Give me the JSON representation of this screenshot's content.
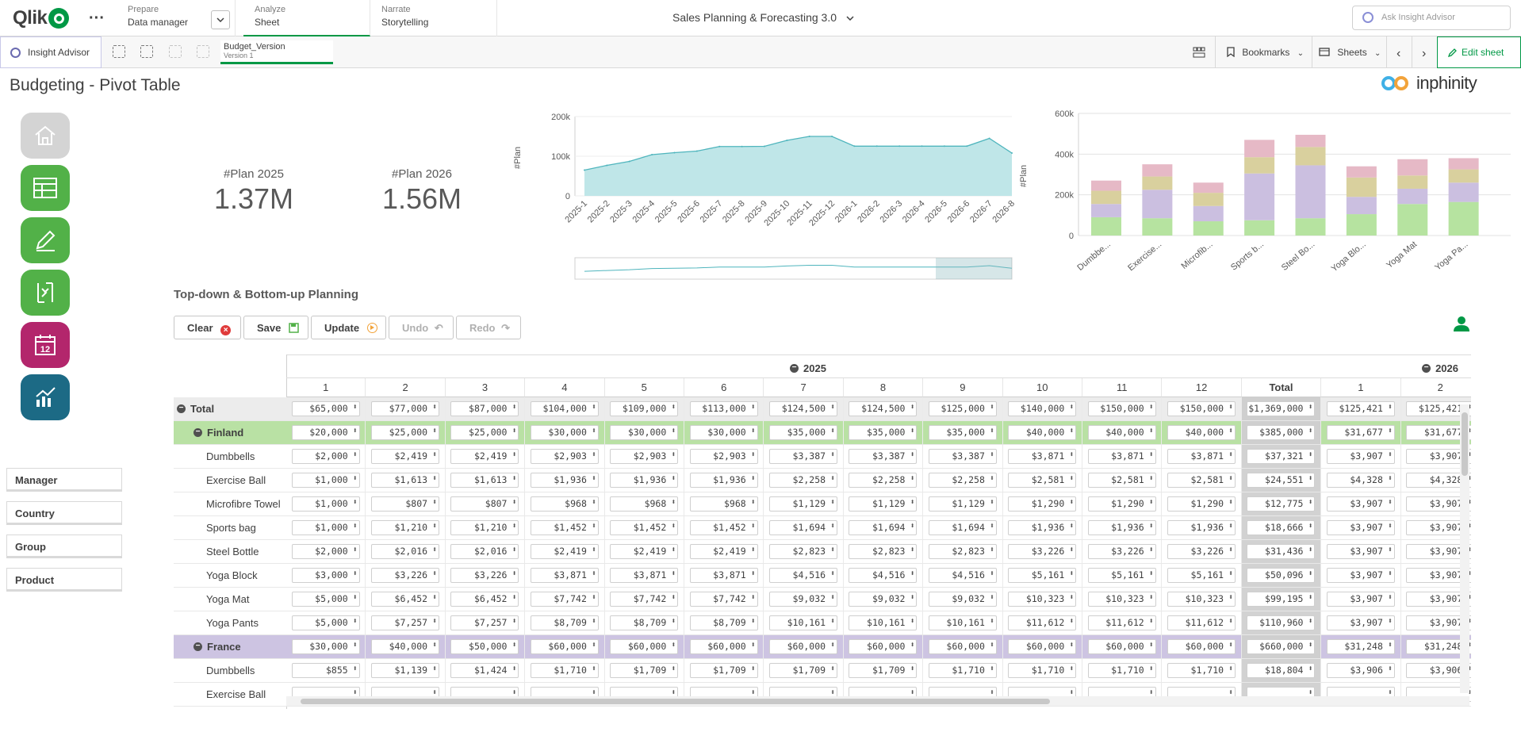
{
  "topbar": {
    "logo_text": "Qlik",
    "nav": [
      {
        "small": "Prepare",
        "large": "Data manager"
      },
      {
        "small": "Analyze",
        "large": "Sheet"
      },
      {
        "small": "Narrate",
        "large": "Storytelling"
      }
    ],
    "app_title": "Sales Planning & Forecasting 3.0",
    "search_placeholder": "Ask Insight Advisor"
  },
  "toolbar": {
    "insight_advisor": "Insight Advisor",
    "selection_name": "Budget_Version",
    "selection_value": "Version 1",
    "bookmarks": "Bookmarks",
    "sheets": "Sheets",
    "edit_sheet": "Edit sheet"
  },
  "sheet": {
    "title": "Budgeting - Pivot Table",
    "brand": "inphinity"
  },
  "kpis": [
    {
      "label": "#Plan 2025",
      "value": "1.37M"
    },
    {
      "label": "#Plan 2026",
      "value": "1.56M"
    }
  ],
  "chart_data": [
    {
      "type": "area",
      "ylabel": "#Plan",
      "ylim": [
        0,
        200000
      ],
      "y_ticks": [
        "0",
        "100k",
        "200k"
      ],
      "categories": [
        "2025-1",
        "2025-2",
        "2025-3",
        "2025-4",
        "2025-5",
        "2025-6",
        "2025-7",
        "2025-8",
        "2025-9",
        "2025-10",
        "2025-11",
        "2025-12",
        "2026-1",
        "2026-2",
        "2026-3",
        "2026-4",
        "2026-5",
        "2026-6",
        "2026-7",
        "2026-8"
      ],
      "x_tick_labels": [
        "2025-1",
        "2025-2",
        "2025-3",
        "2025-4",
        "2025-5",
        "2025-6",
        "2025-7",
        "2025-8",
        "2025-9",
        "2025-10",
        "2025-11",
        "2025-12",
        "2026-1",
        "2026-2",
        "2026-3",
        "2026-4",
        "2026-5",
        "2026-6",
        "2026-7",
        "2026-8"
      ],
      "values": [
        65000,
        77000,
        87000,
        104000,
        109000,
        113000,
        124500,
        124500,
        125000,
        140000,
        150000,
        150000,
        125421,
        125421,
        125421,
        125421,
        125421,
        125421,
        145000,
        108000
      ],
      "color": "#bfe6e8",
      "line_color": "#4fb5bd"
    },
    {
      "type": "bar",
      "stacked": true,
      "ylabel": "#Plan",
      "ylim": [
        0,
        600000
      ],
      "y_ticks": [
        "0",
        "200k",
        "400k",
        "600k"
      ],
      "categories": [
        "Dumbbe...",
        "Exercise...",
        "Microfib...",
        "Sports b...",
        "Steel Bo...",
        "Yoga Blo...",
        "Yoga Mat",
        "Yoga Pa..."
      ],
      "series": [
        {
          "values": [
            90000,
            85000,
            70000,
            75000,
            85000,
            105000,
            155000,
            165000
          ],
          "color": "#b6e3a0"
        },
        {
          "values": [
            65000,
            140000,
            75000,
            230000,
            260000,
            85000,
            75000,
            95000
          ],
          "color": "#cbbfe0"
        },
        {
          "values": [
            65000,
            65000,
            65000,
            80000,
            90000,
            95000,
            65000,
            65000
          ],
          "color": "#d9d09e"
        },
        {
          "values": [
            50000,
            60000,
            50000,
            85000,
            60000,
            55000,
            80000,
            55000
          ],
          "color": "#e6b9c6"
        }
      ]
    }
  ],
  "filters": [
    "Manager",
    "Country",
    "Group",
    "Product"
  ],
  "planning": {
    "title": "Top-down & Bottom-up Planning",
    "buttons": {
      "clear": "Clear",
      "save": "Save",
      "update": "Update",
      "undo": "Undo",
      "redo": "Redo"
    }
  },
  "pivot": {
    "year1": "2025",
    "year2": "2026",
    "months": [
      "1",
      "2",
      "3",
      "4",
      "5",
      "6",
      "7",
      "8",
      "9",
      "10",
      "11",
      "12",
      "Total",
      "1",
      "2"
    ],
    "rows": [
      {
        "label": "Total",
        "kind": "total",
        "values": [
          "$65,000",
          "$77,000",
          "$87,000",
          "$104,000",
          "$109,000",
          "$113,000",
          "$124,500",
          "$124,500",
          "$125,000",
          "$140,000",
          "$150,000",
          "$150,000",
          "$1,369,000",
          "$125,421",
          "$125,421"
        ]
      },
      {
        "label": "Finland",
        "kind": "group-green",
        "values": [
          "$20,000",
          "$25,000",
          "$25,000",
          "$30,000",
          "$30,000",
          "$30,000",
          "$35,000",
          "$35,000",
          "$35,000",
          "$40,000",
          "$40,000",
          "$40,000",
          "$385,000",
          "$31,677",
          "$31,677"
        ]
      },
      {
        "label": "Dumbbells",
        "kind": "item",
        "values": [
          "$2,000",
          "$2,419",
          "$2,419",
          "$2,903",
          "$2,903",
          "$2,903",
          "$3,387",
          "$3,387",
          "$3,387",
          "$3,871",
          "$3,871",
          "$3,871",
          "$37,321",
          "$3,907",
          "$3,907"
        ]
      },
      {
        "label": "Exercise Ball",
        "kind": "item",
        "values": [
          "$1,000",
          "$1,613",
          "$1,613",
          "$1,936",
          "$1,936",
          "$1,936",
          "$2,258",
          "$2,258",
          "$2,258",
          "$2,581",
          "$2,581",
          "$2,581",
          "$24,551",
          "$4,328",
          "$4,328"
        ]
      },
      {
        "label": "Microfibre Towel",
        "kind": "item",
        "values": [
          "$1,000",
          "$807",
          "$807",
          "$968",
          "$968",
          "$968",
          "$1,129",
          "$1,129",
          "$1,129",
          "$1,290",
          "$1,290",
          "$1,290",
          "$12,775",
          "$3,907",
          "$3,907"
        ]
      },
      {
        "label": "Sports bag",
        "kind": "item",
        "values": [
          "$1,000",
          "$1,210",
          "$1,210",
          "$1,452",
          "$1,452",
          "$1,452",
          "$1,694",
          "$1,694",
          "$1,694",
          "$1,936",
          "$1,936",
          "$1,936",
          "$18,666",
          "$3,907",
          "$3,907"
        ]
      },
      {
        "label": "Steel Bottle",
        "kind": "item",
        "values": [
          "$2,000",
          "$2,016",
          "$2,016",
          "$2,419",
          "$2,419",
          "$2,419",
          "$2,823",
          "$2,823",
          "$2,823",
          "$3,226",
          "$3,226",
          "$3,226",
          "$31,436",
          "$3,907",
          "$3,907"
        ]
      },
      {
        "label": "Yoga Block",
        "kind": "item",
        "values": [
          "$3,000",
          "$3,226",
          "$3,226",
          "$3,871",
          "$3,871",
          "$3,871",
          "$4,516",
          "$4,516",
          "$4,516",
          "$5,161",
          "$5,161",
          "$5,161",
          "$50,096",
          "$3,907",
          "$3,907"
        ]
      },
      {
        "label": "Yoga Mat",
        "kind": "item",
        "values": [
          "$5,000",
          "$6,452",
          "$6,452",
          "$7,742",
          "$7,742",
          "$7,742",
          "$9,032",
          "$9,032",
          "$9,032",
          "$10,323",
          "$10,323",
          "$10,323",
          "$99,195",
          "$3,907",
          "$3,907"
        ]
      },
      {
        "label": "Yoga Pants",
        "kind": "item",
        "values": [
          "$5,000",
          "$7,257",
          "$7,257",
          "$8,709",
          "$8,709",
          "$8,709",
          "$10,161",
          "$10,161",
          "$10,161",
          "$11,612",
          "$11,612",
          "$11,612",
          "$110,960",
          "$3,907",
          "$3,907"
        ]
      },
      {
        "label": "France",
        "kind": "group-purple",
        "values": [
          "$30,000",
          "$40,000",
          "$50,000",
          "$60,000",
          "$60,000",
          "$60,000",
          "$60,000",
          "$60,000",
          "$60,000",
          "$60,000",
          "$60,000",
          "$60,000",
          "$660,000",
          "$31,248",
          "$31,248"
        ]
      },
      {
        "label": "Dumbbells",
        "kind": "item",
        "values": [
          "$855",
          "$1,139",
          "$1,424",
          "$1,710",
          "$1,709",
          "$1,709",
          "$1,709",
          "$1,709",
          "$1,710",
          "$1,710",
          "$1,710",
          "$1,710",
          "$18,804",
          "$3,906",
          "$3,906"
        ]
      },
      {
        "label": "Exercise Ball",
        "kind": "item",
        "values": [
          "",
          "",
          "",
          "",
          "",
          "",
          "",
          "",
          "",
          "",
          "",
          "",
          "",
          "",
          ""
        ]
      }
    ]
  },
  "colors": {
    "accent": "#009845",
    "green_row": "#b9e1a4",
    "purple_row": "#cdc4e2",
    "nav_home": "#d4d4d4",
    "nav_green": "#52b148",
    "nav_magenta": "#b3266c",
    "nav_teal": "#1c6a85"
  }
}
